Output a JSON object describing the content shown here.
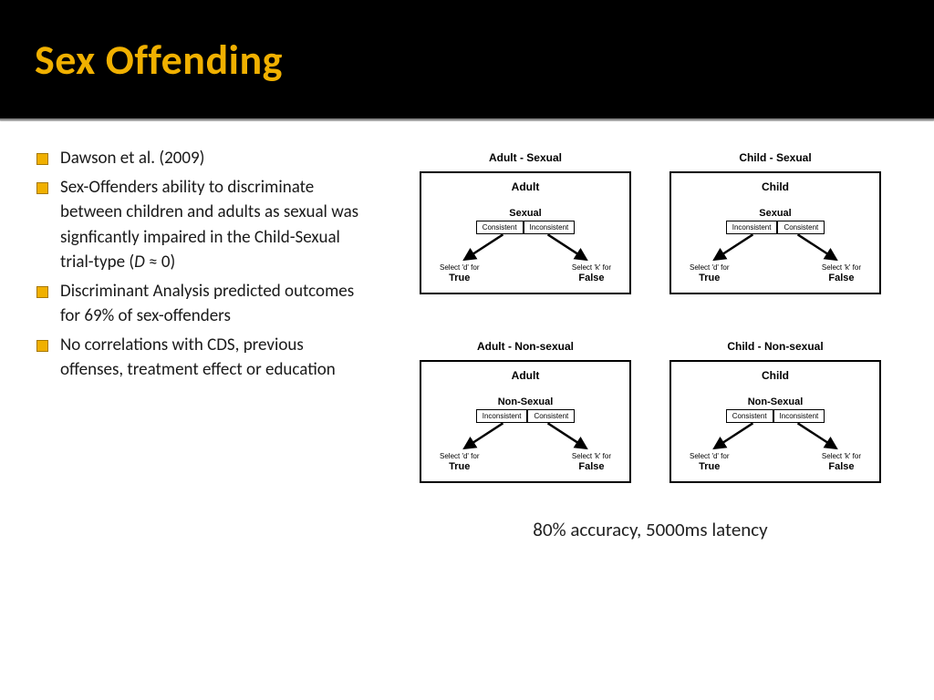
{
  "header": {
    "title": "Sex Offending",
    "title_color": "#f0b000",
    "bg_color": "#000000"
  },
  "bullets": [
    "Dawson et al. (2009)",
    "Sex-Offenders ability to discriminate between children and adults as sexual was signficantly impaired in the Child-Sexual trial-type (D ≈ 0)",
    "Discriminant Analysis predicted outcomes for 69% of sex-offenders",
    "No correlations with CDS, previous offenses, treatment effect or education"
  ],
  "bullet_marker_color": "#f0b000",
  "diagrams": {
    "layout": "2x2",
    "panels": [
      {
        "title": "Adult - Sexual",
        "top": "Adult",
        "mid": "Sexual",
        "left_tag": "Consistent",
        "right_tag": "Inconsistent",
        "left_sel": "Select 'd' for",
        "left_tf": "True",
        "right_sel": "Select 'k' for",
        "right_tf": "False"
      },
      {
        "title": "Child - Sexual",
        "top": "Child",
        "mid": "Sexual",
        "left_tag": "Inconsistent",
        "right_tag": "Consistent",
        "left_sel": "Select 'd' for",
        "left_tf": "True",
        "right_sel": "Select 'k' for",
        "right_tf": "False"
      },
      {
        "title": "Adult - Non-sexual",
        "top": "Adult",
        "mid": "Non-Sexual",
        "left_tag": "Inconsistent",
        "right_tag": "Consistent",
        "left_sel": "Select 'd' for",
        "left_tf": "True",
        "right_sel": "Select 'k' for",
        "right_tf": "False"
      },
      {
        "title": "Child - Non-sexual",
        "top": "Child",
        "mid": "Non-Sexual",
        "left_tag": "Consistent",
        "right_tag": "Inconsistent",
        "left_sel": "Select 'd' for",
        "left_tf": "True",
        "right_sel": "Select 'k' for",
        "right_tf": "False"
      }
    ],
    "box_border_color": "#000000",
    "arrow_color": "#000000"
  },
  "caption": "80% accuracy, 5000ms latency"
}
